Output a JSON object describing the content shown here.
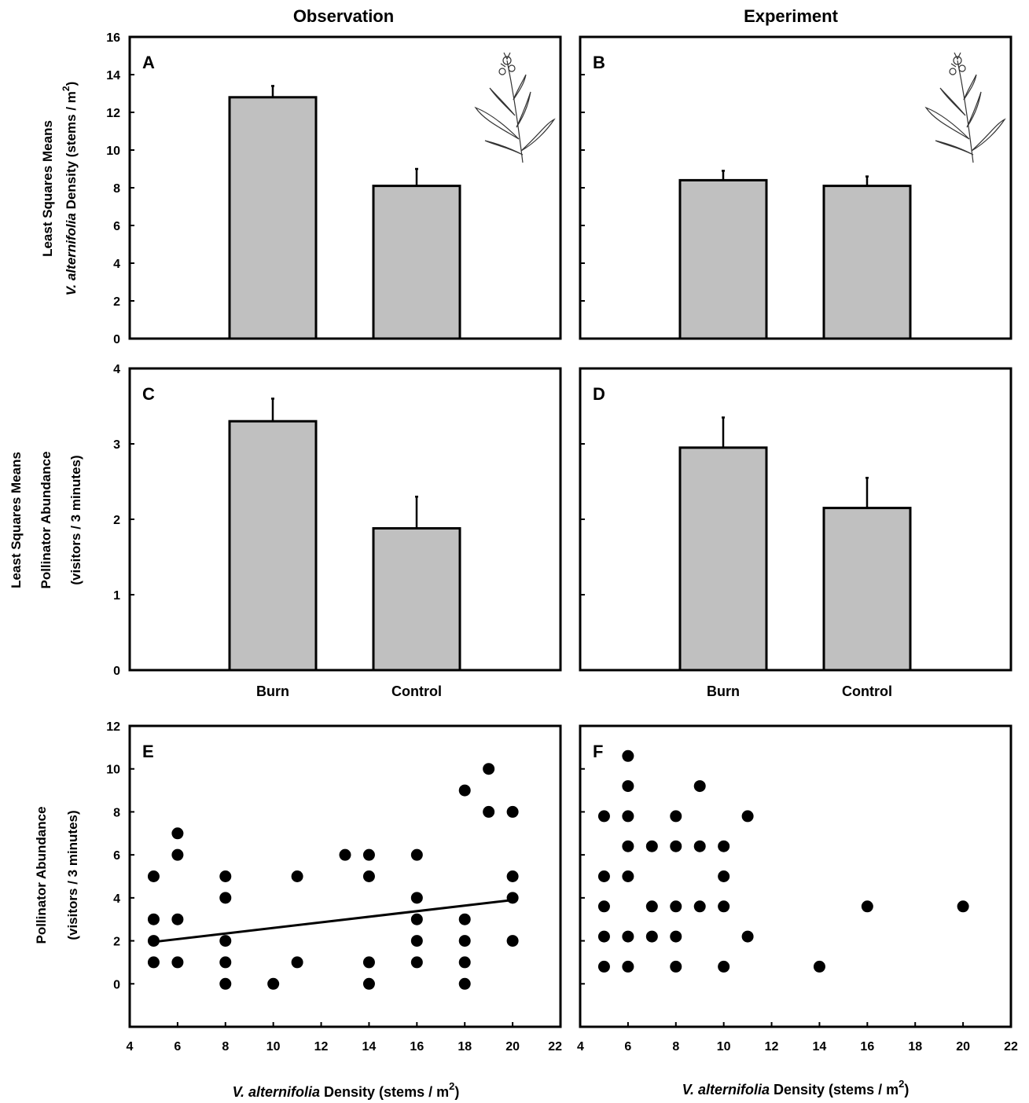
{
  "column_titles": [
    "Observation",
    "Experiment"
  ],
  "row_labels": {
    "density_line1": "Least Squares Means",
    "density_line2_italic": "V. alternifolia",
    "density_line2_rest": " Density (stems / m",
    "density_sup": "2",
    "density_close": ")",
    "poll_line1": "Least Squares Means",
    "poll_line2": "Pollinator Abundance",
    "poll_line3": "(visitors / 3 minutes)",
    "scatter_line1": "Pollinator Abundance",
    "scatter_line2": "(visitors / 3 minutes)"
  },
  "x_label": {
    "italic": "V. alternifolia",
    "rest": " Density (stems / m",
    "sup": "2",
    "close": ")"
  },
  "colors": {
    "bar_fill": "#c0c0c0",
    "stroke": "#000000"
  },
  "chart_data": [
    {
      "panel": "A",
      "type": "bar",
      "categories": [
        "Burn",
        "Control"
      ],
      "values": [
        12.8,
        8.1
      ],
      "errors": [
        0.6,
        0.9
      ],
      "ylim": [
        0,
        16
      ],
      "yticks": [
        0,
        2,
        4,
        6,
        8,
        10,
        12,
        14,
        16
      ],
      "icon": "plant-illustration"
    },
    {
      "panel": "B",
      "type": "bar",
      "categories": [
        "Burn",
        "Control"
      ],
      "values": [
        8.4,
        8.1
      ],
      "errors": [
        0.5,
        0.5
      ],
      "ylim": [
        0,
        16
      ],
      "yticks": [
        0,
        2,
        4,
        6,
        8,
        10,
        12,
        14,
        16
      ],
      "icon": "plant-illustration"
    },
    {
      "panel": "C",
      "type": "bar",
      "categories": [
        "Burn",
        "Control"
      ],
      "values": [
        3.3,
        1.88
      ],
      "errors": [
        0.3,
        0.42
      ],
      "ylim": [
        0,
        4
      ],
      "yticks": [
        0,
        1,
        2,
        3,
        4
      ]
    },
    {
      "panel": "D",
      "type": "bar",
      "categories": [
        "Burn",
        "Control"
      ],
      "values": [
        2.95,
        2.15
      ],
      "errors": [
        0.4,
        0.4
      ],
      "ylim": [
        0,
        4
      ],
      "yticks": [
        0,
        1,
        2,
        3,
        4
      ]
    },
    {
      "panel": "E",
      "type": "scatter",
      "xlim": [
        4,
        22
      ],
      "ylim": [
        -2,
        12
      ],
      "xticks": [
        4,
        6,
        8,
        10,
        12,
        14,
        16,
        18,
        20,
        22
      ],
      "yticks": [
        0,
        2,
        4,
        6,
        8,
        10,
        12
      ],
      "points": [
        [
          5,
          5
        ],
        [
          5,
          3
        ],
        [
          5,
          2
        ],
        [
          5,
          1
        ],
        [
          6,
          7
        ],
        [
          6,
          6
        ],
        [
          6,
          3
        ],
        [
          6,
          1
        ],
        [
          8,
          5
        ],
        [
          8,
          4
        ],
        [
          8,
          2
        ],
        [
          8,
          1
        ],
        [
          8,
          0
        ],
        [
          10,
          0
        ],
        [
          11,
          5
        ],
        [
          11,
          1
        ],
        [
          13,
          6
        ],
        [
          14,
          6
        ],
        [
          14,
          5
        ],
        [
          14,
          1
        ],
        [
          14,
          0
        ],
        [
          16,
          6
        ],
        [
          16,
          4
        ],
        [
          16,
          3
        ],
        [
          16,
          2
        ],
        [
          16,
          1
        ],
        [
          18,
          9
        ],
        [
          18,
          3
        ],
        [
          18,
          2
        ],
        [
          18,
          1
        ],
        [
          18,
          0
        ],
        [
          19,
          10
        ],
        [
          19,
          8
        ],
        [
          20,
          8
        ],
        [
          20,
          5
        ],
        [
          20,
          4
        ],
        [
          20,
          2
        ]
      ],
      "fit_line": [
        [
          5,
          1.95
        ],
        [
          20,
          3.9
        ]
      ]
    },
    {
      "panel": "F",
      "type": "scatter",
      "xlim": [
        4,
        22
      ],
      "ylim": [
        -2,
        12
      ],
      "xticks": [
        4,
        6,
        8,
        10,
        12,
        14,
        16,
        18,
        20,
        22
      ],
      "yticks": [
        0,
        2,
        4,
        6,
        8,
        10,
        12
      ],
      "points": [
        [
          5,
          7.8
        ],
        [
          5,
          5
        ],
        [
          5,
          3.6
        ],
        [
          5,
          2.2
        ],
        [
          5,
          0.8
        ],
        [
          6,
          10.6
        ],
        [
          6,
          9.2
        ],
        [
          6,
          7.8
        ],
        [
          6,
          6.4
        ],
        [
          6,
          5
        ],
        [
          6,
          2.2
        ],
        [
          6,
          0.8
        ],
        [
          7,
          6.4
        ],
        [
          7,
          3.6
        ],
        [
          7,
          2.2
        ],
        [
          8,
          7.8
        ],
        [
          8,
          6.4
        ],
        [
          8,
          3.6
        ],
        [
          8,
          2.2
        ],
        [
          8,
          0.8
        ],
        [
          9,
          9.2
        ],
        [
          9,
          6.4
        ],
        [
          9,
          3.6
        ],
        [
          10,
          6.4
        ],
        [
          10,
          5
        ],
        [
          10,
          3.6
        ],
        [
          10,
          0.8
        ],
        [
          11,
          7.8
        ],
        [
          11,
          2.2
        ],
        [
          14,
          0.8
        ],
        [
          16,
          3.6
        ],
        [
          20,
          3.6
        ]
      ]
    }
  ]
}
